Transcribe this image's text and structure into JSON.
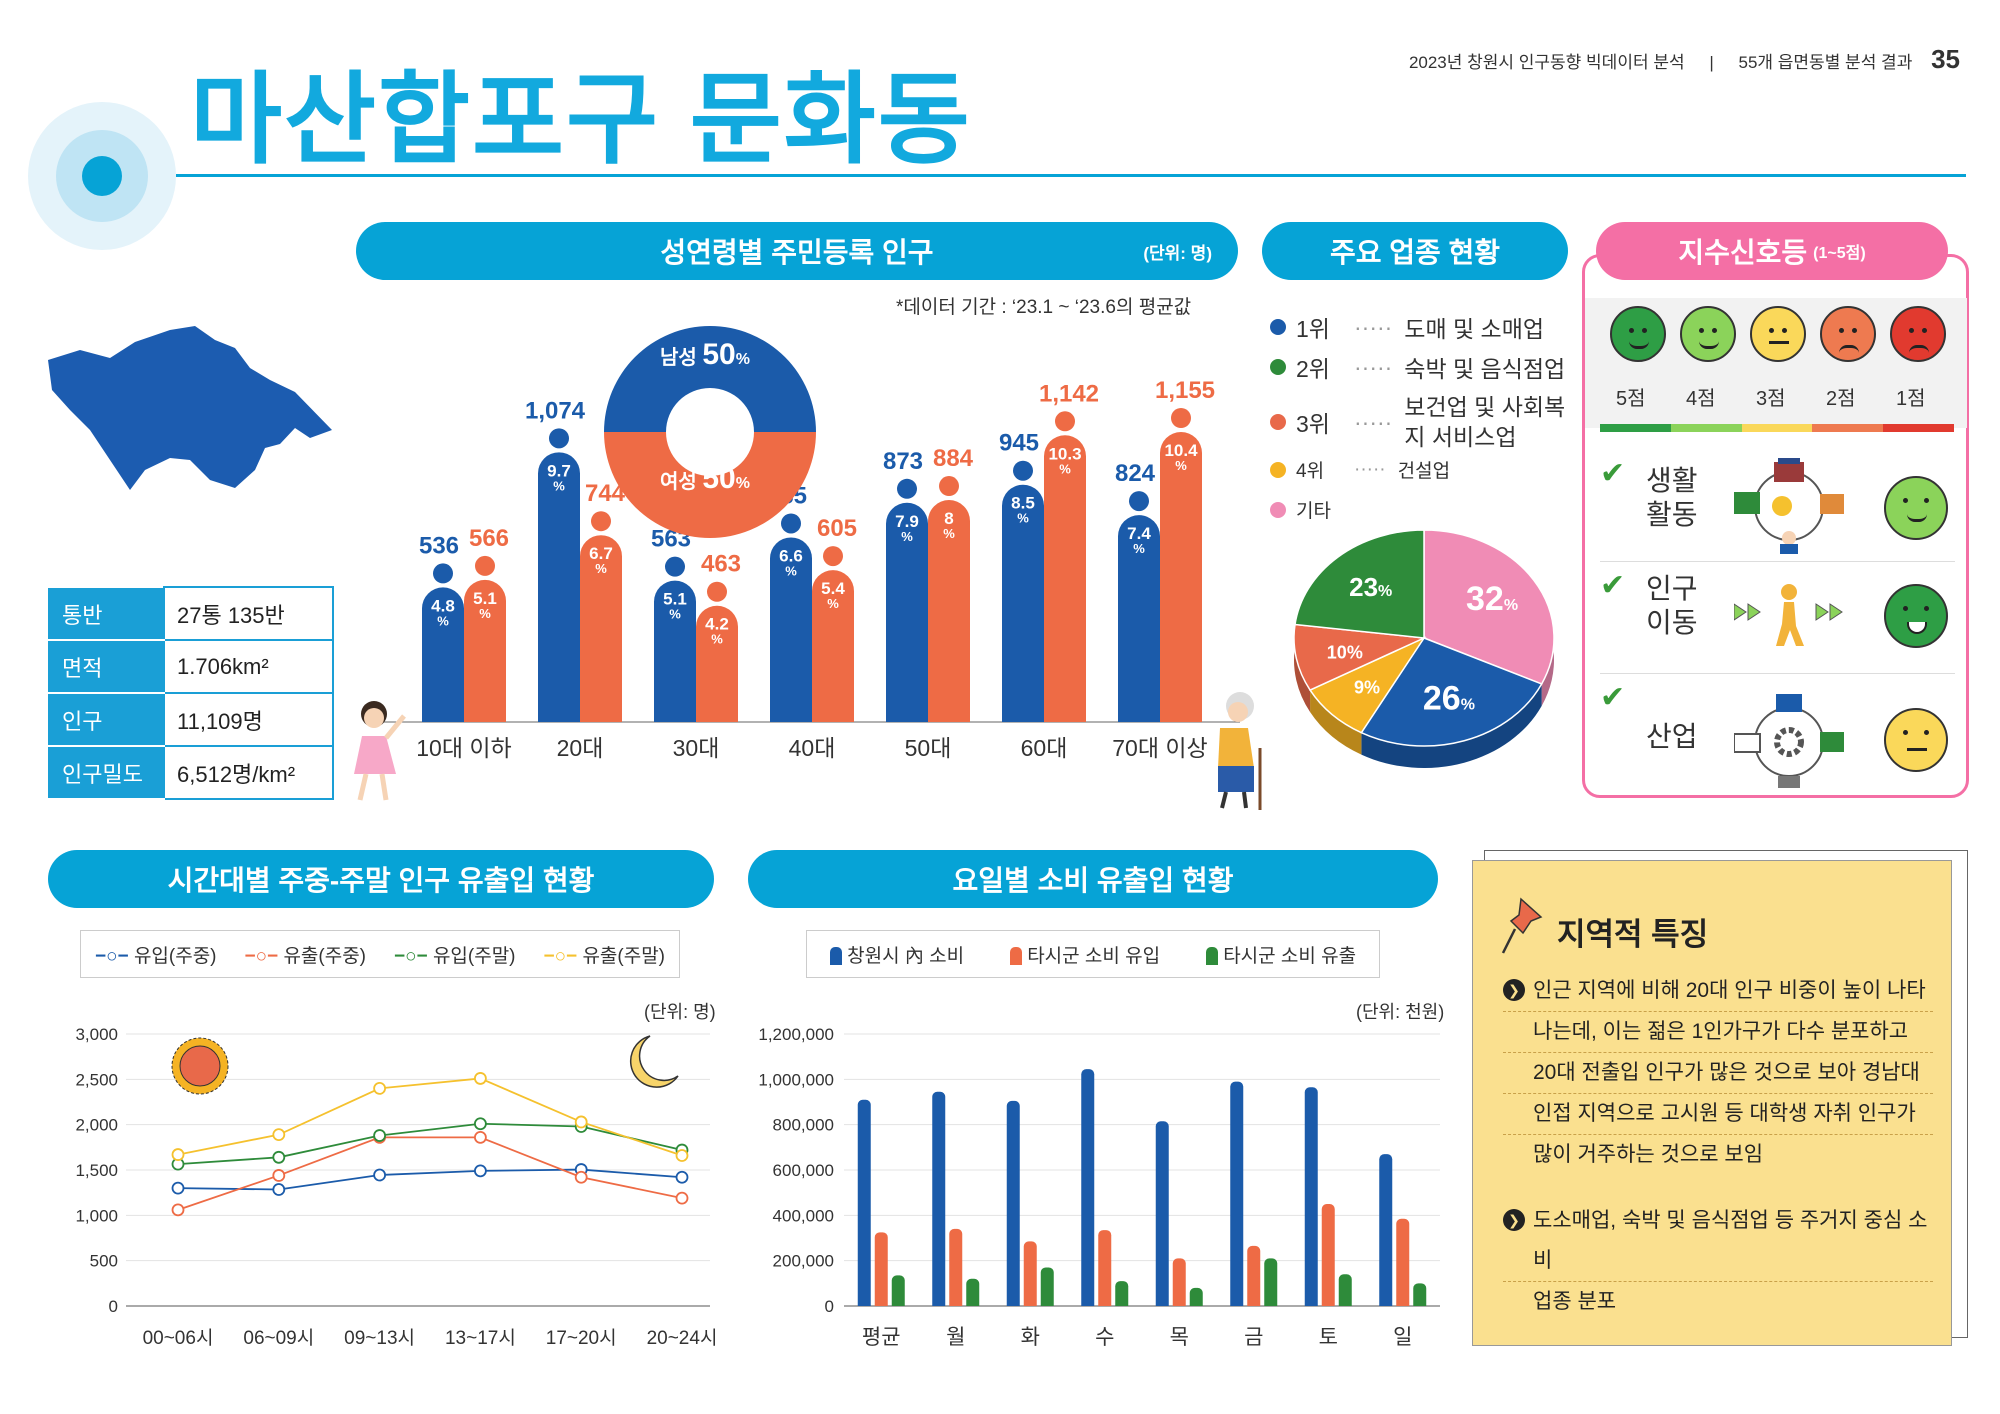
{
  "header": {
    "title": "마산합포구 문화동",
    "report_title": "2023년 창원시 인구동향 빅데이터 분석",
    "separator": "|",
    "section": "55개 읍면동별 분석 결과",
    "page_number": "35"
  },
  "colors": {
    "accent": "#06A3D6",
    "male": "#1B5BAA",
    "female": "#EE6B45",
    "map": "#1C5CB0",
    "signal_border": "#F46FA5"
  },
  "info_table": [
    {
      "key": "통반",
      "value": "27통 135반"
    },
    {
      "key": "면적",
      "value": "1.706km²"
    },
    {
      "key": "인구",
      "value": "11,109명"
    },
    {
      "key": "인구밀도",
      "value": "6,512명/km²"
    }
  ],
  "population": {
    "title": "성연령별 주민등록 인구",
    "unit": "(단위: 명)",
    "period_note": "*데이터 기간 : ‘23.1 ~ ‘23.6의 평균값",
    "donut": {
      "male_label": "남성",
      "male_pct": "50",
      "female_label": "여성",
      "female_pct": "50",
      "pct_sign": "%"
    }
  },
  "industry": {
    "title": "주요 업종 현황",
    "items": [
      {
        "rank": "1위",
        "color": "#1B5BAA",
        "name": "도매 및 소매업"
      },
      {
        "rank": "2위",
        "color": "#2E8B3A",
        "name": "숙박 및 음식점업"
      },
      {
        "rank": "3위",
        "color": "#E8694A",
        "name": "보건업 및 사회복지 서비스업"
      },
      {
        "rank": "4위",
        "color": "#F5B324",
        "name": "건설업"
      },
      {
        "rank": "기타",
        "color": "#F08CB5",
        "name": ""
      }
    ],
    "dots": "·····"
  },
  "signal": {
    "title": "지수신호등",
    "range": "(1~5점)",
    "scores": [
      "5점",
      "4점",
      "3점",
      "2점",
      "1점"
    ],
    "rows": [
      {
        "name_line1": "생활",
        "name_line2": "활동",
        "level": 4
      },
      {
        "name_line1": "인구",
        "name_line2": "이동",
        "level": 5
      },
      {
        "name_line1": "산업",
        "name_line2": "",
        "level": 3
      }
    ],
    "face_colors": [
      "#2E9E45",
      "#8BD35A",
      "#FAD85A",
      "#EE7A50",
      "#E13A2F"
    ]
  },
  "flow": {
    "title": "시간대별 주중-주말 인구 유출입 현황",
    "legend": [
      "유입(주중)",
      "유출(주중)",
      "유입(주말)",
      "유출(주말)"
    ],
    "unit": "(단위: 명)"
  },
  "consumption": {
    "title": "요일별 소비 유출입 현황",
    "legend": [
      "창원시 內 소비",
      "타시군 소비 유입",
      "타시군 소비 유출"
    ],
    "unit": "(단위: 천원)"
  },
  "feature": {
    "title": "지역적 특징",
    "bullet_icon": "❯",
    "bullets": [
      [
        "인근 지역에 비해 20대 인구 비중이 높이 나타",
        "나는데, 이는 젊은 1인가구가 다수 분포하고",
        "20대 전출입 인구가 많은 것으로 보아 경남대",
        "인접 지역으로 고시원 등 대학생 자취 인구가",
        "많이 거주하는 것으로 보임"
      ],
      [
        "도소매업, 숙박 및 음식점업 등 주거지 중심 소비",
        "업종 분포"
      ]
    ]
  },
  "chart_data": [
    {
      "type": "bar",
      "title": "성연령별 주민등록 인구",
      "categories": [
        "10대 이하",
        "20대",
        "30대",
        "40대",
        "50대",
        "60대",
        "70대 이상"
      ],
      "series": [
        {
          "name": "남성",
          "values": [
            536,
            1074,
            563,
            735,
            873,
            945,
            824
          ],
          "pct": [
            "4.8",
            "9.7",
            "5.1",
            "6.6",
            "7.9",
            "8.5",
            "7.4"
          ]
        },
        {
          "name": "여성",
          "values": [
            566,
            744,
            463,
            605,
            884,
            1142,
            1155
          ],
          "pct": [
            "5.1",
            "6.7",
            "4.2",
            "5.4",
            "8",
            "10.3",
            "10.4"
          ]
        }
      ],
      "value_labels": {
        "male": [
          "536",
          "1,074",
          "563",
          "735",
          "873",
          "945",
          "824"
        ],
        "female": [
          "566",
          "744",
          "463",
          "605",
          "884",
          "1,142",
          "1,155"
        ]
      }
    },
    {
      "type": "pie",
      "title": "주요 업종 현황",
      "labels": [
        "기타",
        "1위",
        "4위",
        "3위",
        "2위"
      ],
      "values": [
        32,
        26,
        9,
        10,
        23
      ],
      "display": [
        "32",
        "26",
        "9%",
        "10%",
        "23"
      ],
      "colors": [
        "#F08CB5",
        "#1B5BAA",
        "#F5B324",
        "#E8694A",
        "#2E8B3A"
      ]
    },
    {
      "type": "line",
      "title": "시간대별 주중-주말 인구 유출입 현황",
      "categories": [
        "00~06시",
        "06~09시",
        "09~13시",
        "13~17시",
        "17~20시",
        "20~24시"
      ],
      "yticks": [
        "3,000",
        "2,500",
        "2,000",
        "1,500",
        "1,000",
        "500",
        "0"
      ],
      "ylim": [
        0,
        3000
      ],
      "series": [
        {
          "name": "유입(주중)",
          "color": "#1B5BAA",
          "values": [
            1300,
            1285,
            1445,
            1490,
            1505,
            1420
          ]
        },
        {
          "name": "유출(주중)",
          "color": "#EE6B45",
          "values": [
            1060,
            1440,
            1860,
            1860,
            1420,
            1190
          ]
        },
        {
          "name": "유입(주말)",
          "color": "#2E8B3A",
          "values": [
            1565,
            1640,
            1880,
            2010,
            1980,
            1720
          ]
        },
        {
          "name": "유출(주말)",
          "color": "#F5C12E",
          "values": [
            1670,
            1890,
            2400,
            2510,
            2030,
            1660
          ]
        }
      ]
    },
    {
      "type": "bar",
      "title": "요일별 소비 유출입 현황",
      "categories": [
        "평균",
        "월",
        "화",
        "수",
        "목",
        "금",
        "토",
        "일"
      ],
      "yticks": [
        "1,200,000",
        "1,000,000",
        "800,000",
        "600,000",
        "400,000",
        "200,000",
        "0"
      ],
      "ylim": [
        0,
        1200000
      ],
      "series": [
        {
          "name": "창원시 內 소비",
          "color": "#1B5BAA",
          "values": [
            910000,
            945000,
            905000,
            1045000,
            815000,
            990000,
            965000,
            670000
          ]
        },
        {
          "name": "타시군 소비 유입",
          "color": "#EE6B45",
          "values": [
            325000,
            340000,
            285000,
            335000,
            210000,
            265000,
            450000,
            385000
          ]
        },
        {
          "name": "타시군 소비 유출",
          "color": "#2E8B3A",
          "values": [
            135000,
            120000,
            170000,
            110000,
            80000,
            210000,
            140000,
            100000
          ]
        }
      ]
    }
  ]
}
